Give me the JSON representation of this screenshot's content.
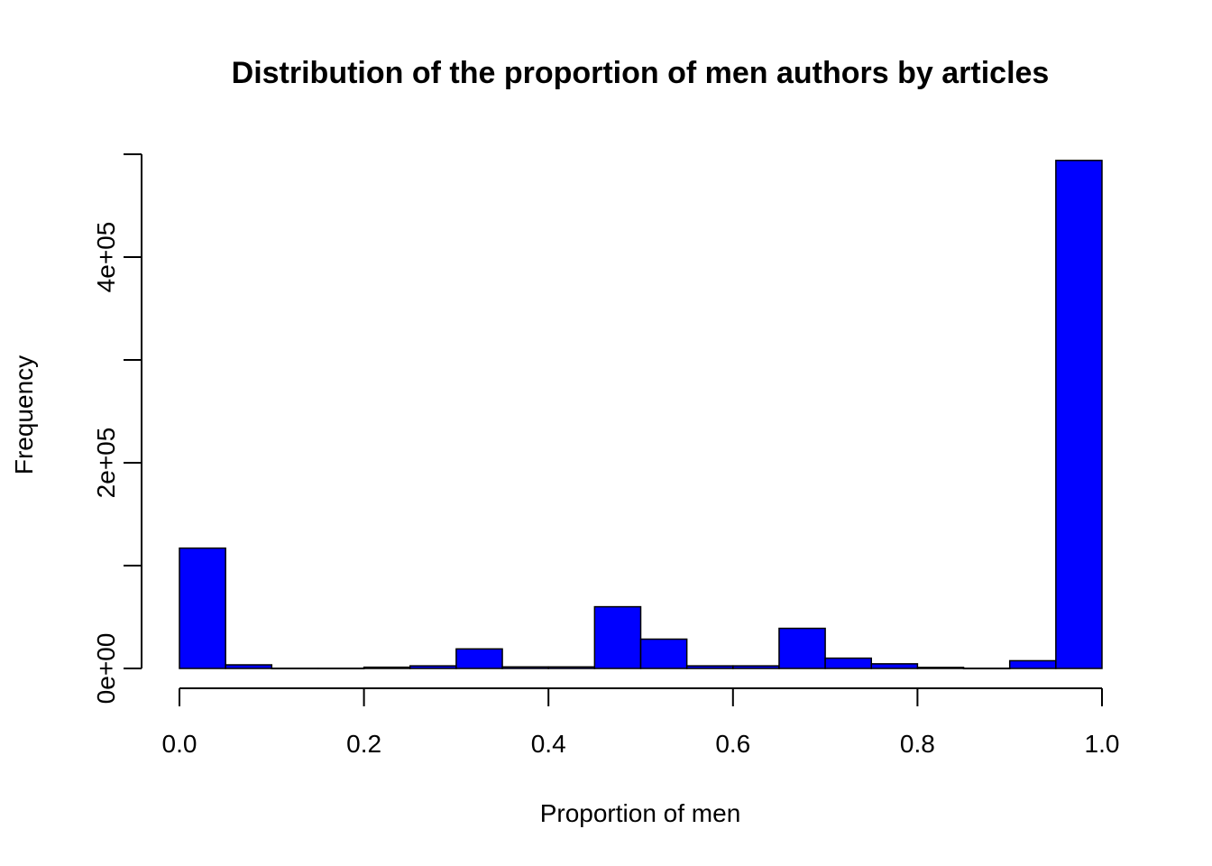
{
  "chart_data": {
    "type": "bar",
    "title": "Distribution of the proportion of men authors by articles",
    "xlabel": "Proportion of men",
    "ylabel": "Frequency",
    "bar_color": "#0000ff",
    "bar_border_color": "#000000",
    "xlim": [
      0,
      1
    ],
    "ylim": [
      0,
      500000
    ],
    "x_ticks": [
      0.0,
      0.2,
      0.4,
      0.6,
      0.8,
      1.0
    ],
    "x_tick_labels": [
      "0.0",
      "0.2",
      "0.4",
      "0.6",
      "0.8",
      "1.0"
    ],
    "y_ticks": [
      0,
      100000,
      200000,
      300000,
      400000,
      500000
    ],
    "y_tick_labels": [
      "0e+00",
      "",
      "2e+05",
      "",
      "4e+05",
      ""
    ],
    "bins": [
      {
        "x0": 0.0,
        "x1": 0.05,
        "value": 117000
      },
      {
        "x0": 0.05,
        "x1": 0.1,
        "value": 3500
      },
      {
        "x0": 0.1,
        "x1": 0.15,
        "value": 200
      },
      {
        "x0": 0.15,
        "x1": 0.2,
        "value": 200
      },
      {
        "x0": 0.2,
        "x1": 0.25,
        "value": 1200
      },
      {
        "x0": 0.25,
        "x1": 0.3,
        "value": 2500
      },
      {
        "x0": 0.3,
        "x1": 0.35,
        "value": 19000
      },
      {
        "x0": 0.35,
        "x1": 0.4,
        "value": 1500
      },
      {
        "x0": 0.4,
        "x1": 0.45,
        "value": 1500
      },
      {
        "x0": 0.45,
        "x1": 0.5,
        "value": 60000
      },
      {
        "x0": 0.5,
        "x1": 0.55,
        "value": 28500
      },
      {
        "x0": 0.55,
        "x1": 0.6,
        "value": 2500
      },
      {
        "x0": 0.6,
        "x1": 0.65,
        "value": 2500
      },
      {
        "x0": 0.65,
        "x1": 0.7,
        "value": 39000
      },
      {
        "x0": 0.7,
        "x1": 0.75,
        "value": 10000
      },
      {
        "x0": 0.75,
        "x1": 0.8,
        "value": 4500
      },
      {
        "x0": 0.8,
        "x1": 0.85,
        "value": 1000
      },
      {
        "x0": 0.85,
        "x1": 0.9,
        "value": 200
      },
      {
        "x0": 0.9,
        "x1": 0.95,
        "value": 7500
      },
      {
        "x0": 0.95,
        "x1": 1.0,
        "value": 494000
      }
    ]
  }
}
